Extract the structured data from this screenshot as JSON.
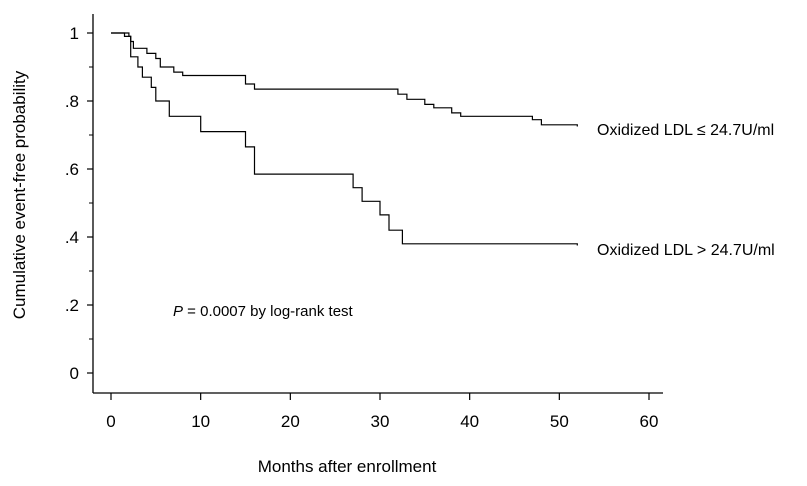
{
  "chart_data": {
    "type": "line",
    "title": "",
    "xlabel": "Months after enrollment",
    "ylabel": "Cumulative event-free probability",
    "xlim": [
      0,
      60
    ],
    "ylim": [
      0,
      1
    ],
    "x_ticks": [
      0,
      10,
      20,
      30,
      40,
      50,
      60
    ],
    "x_tick_labels": [
      "0",
      "10",
      "20",
      "30",
      "40",
      "50",
      "60"
    ],
    "y_ticks": [
      0,
      0.2,
      0.4,
      0.6,
      0.8,
      1
    ],
    "y_tick_labels": [
      "0",
      ".2",
      ".4",
      ".6",
      ".8",
      "1"
    ],
    "step": true,
    "grid": false,
    "legend": "none",
    "colors": {
      "line": "#000000",
      "axis": "#000000",
      "background": "#ffffff"
    },
    "series": [
      {
        "name": "Oxidized LDL ≤ 24.7U/ml",
        "points": [
          [
            0,
            1.0
          ],
          [
            2,
            0.99
          ],
          [
            2.2,
            0.975
          ],
          [
            2.5,
            0.955
          ],
          [
            4,
            0.94
          ],
          [
            5,
            0.925
          ],
          [
            5.5,
            0.9
          ],
          [
            7,
            0.885
          ],
          [
            8,
            0.875
          ],
          [
            15,
            0.85
          ],
          [
            16,
            0.835
          ],
          [
            32,
            0.82
          ],
          [
            33,
            0.805
          ],
          [
            35,
            0.79
          ],
          [
            36,
            0.78
          ],
          [
            38,
            0.765
          ],
          [
            39,
            0.755
          ],
          [
            47,
            0.745
          ],
          [
            48,
            0.73
          ],
          [
            52,
            0.725
          ]
        ]
      },
      {
        "name": "Oxidized LDL > 24.7U/ml",
        "points": [
          [
            0,
            1.0
          ],
          [
            1.5,
            0.99
          ],
          [
            2.2,
            0.93
          ],
          [
            3,
            0.9
          ],
          [
            3.5,
            0.87
          ],
          [
            4.5,
            0.84
          ],
          [
            5,
            0.8
          ],
          [
            6.5,
            0.755
          ],
          [
            10,
            0.71
          ],
          [
            15,
            0.665
          ],
          [
            16,
            0.585
          ],
          [
            27,
            0.545
          ],
          [
            28,
            0.505
          ],
          [
            30,
            0.465
          ],
          [
            31,
            0.42
          ],
          [
            32.5,
            0.38
          ],
          [
            52,
            0.375
          ]
        ]
      }
    ],
    "annotations": {
      "p_italic": "P",
      "p_text": " = 0.0007 by log-rank test"
    }
  }
}
